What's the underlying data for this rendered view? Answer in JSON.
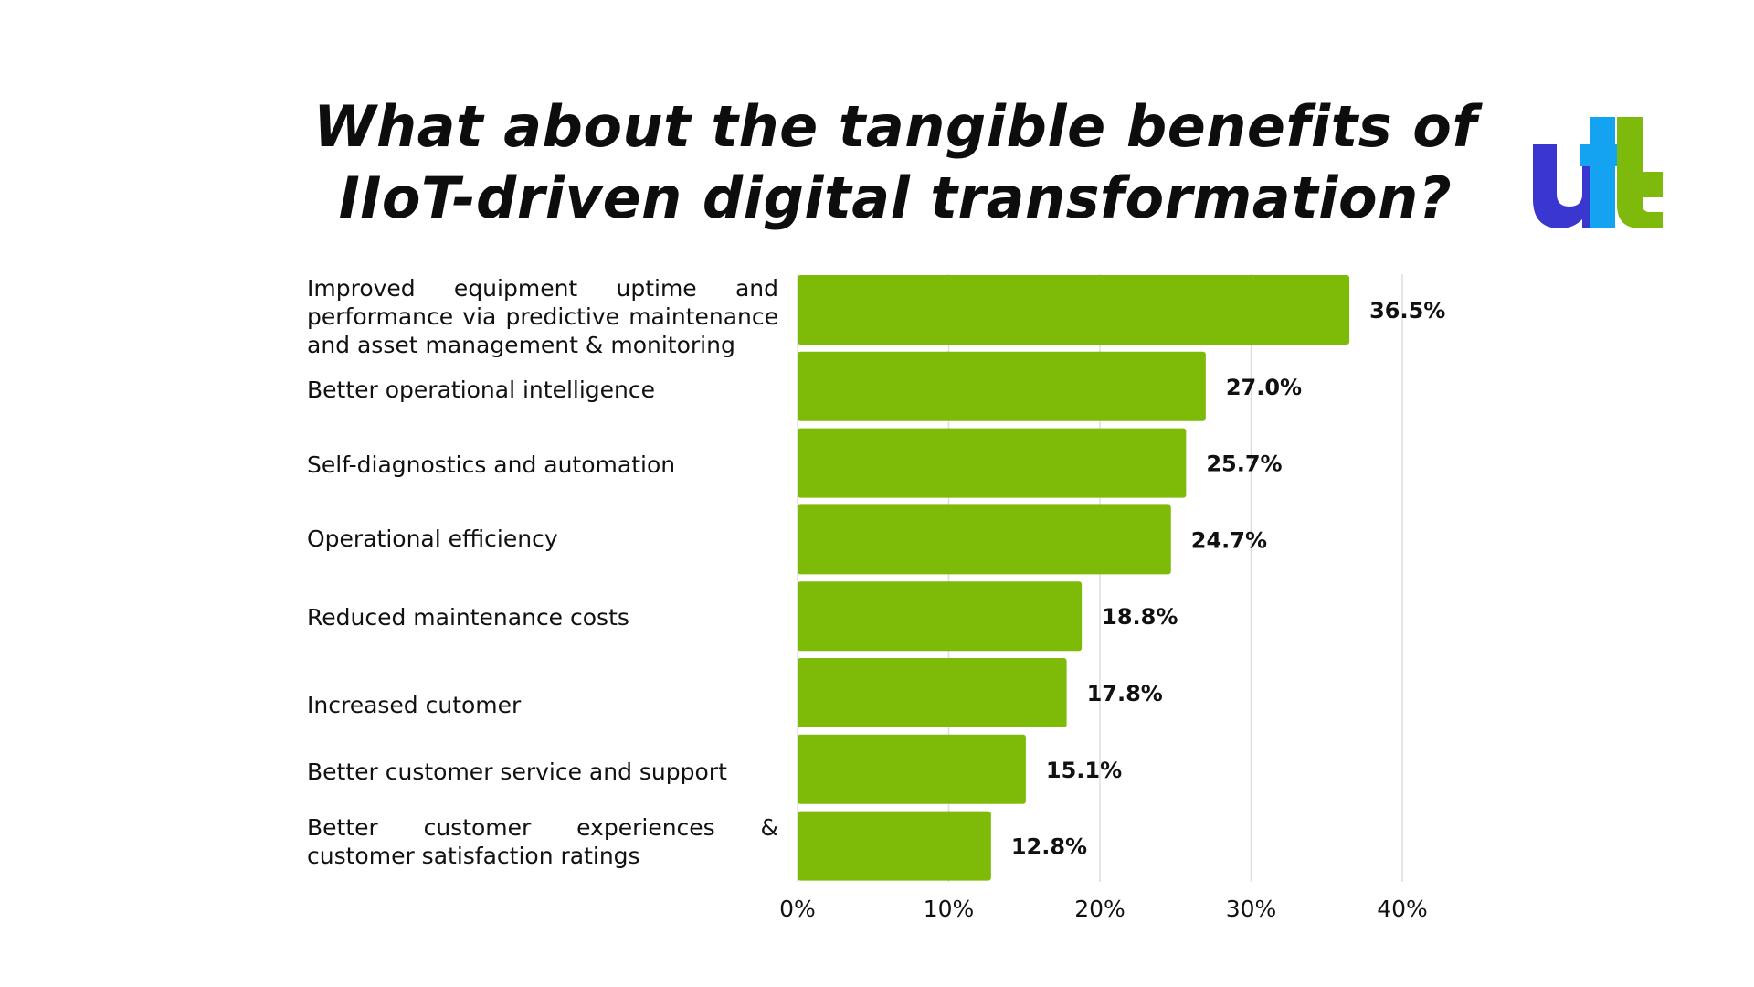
{
  "title_lines": [
    "What about the tangible benefits of",
    "IIoT-driven digital transformation?"
  ],
  "logo": {
    "icon": "utl-logo-icon",
    "colors": {
      "u": "#3a36d0",
      "t1": "#14a3f0",
      "t2": "#7dba0b"
    }
  },
  "colors": {
    "bar": "#7dbb08",
    "grid": "#dddddd",
    "text": "#111111"
  },
  "chart_data": {
    "type": "bar",
    "orientation": "horizontal",
    "categories": [
      "Improved equipment uptime and performance via predictive maintenance and asset management & monitoring",
      "Better operational intelligence",
      "Self-diagnostics and automation",
      "Operational efficiency",
      "Reduced maintenance costs",
      "Increased cutomer",
      "Better customer service and support",
      "Better customer experiences & customer satisfaction ratings"
    ],
    "values": [
      36.5,
      27.0,
      25.7,
      24.7,
      18.8,
      17.8,
      15.1,
      12.8
    ],
    "value_labels": [
      "36.5%",
      "27.0%",
      "25.7%",
      "24.7%",
      "18.8%",
      "17.8%",
      "15.1%",
      "12.8%"
    ],
    "xlim": [
      0,
      40
    ],
    "xticks": [
      0,
      10,
      20,
      30,
      40
    ],
    "xtick_labels": [
      "0%",
      "10%",
      "20%",
      "30%",
      "40%"
    ],
    "grid": true,
    "legend": "none"
  }
}
